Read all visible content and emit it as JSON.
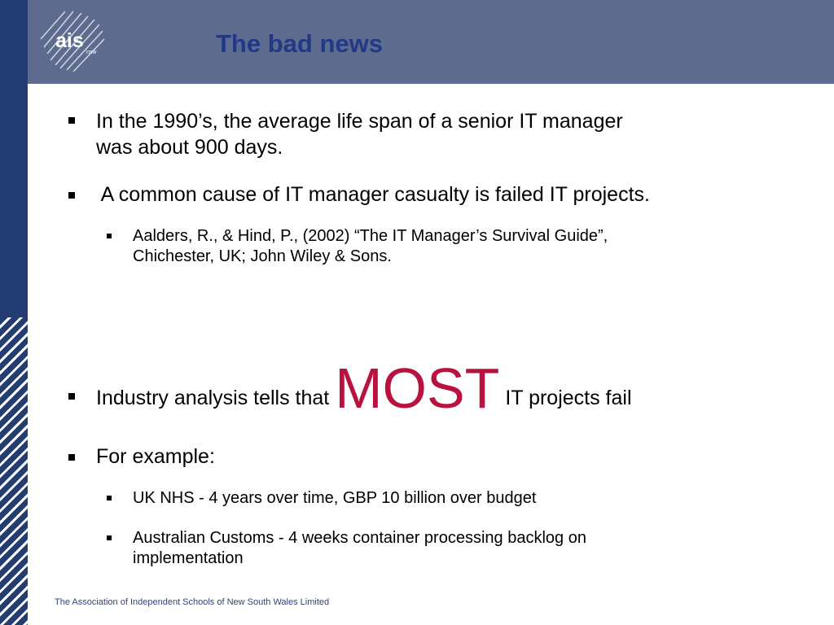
{
  "slide": {
    "title": "The bad news",
    "logo_text": "ais",
    "logo_subtext": "nsw",
    "bullets": [
      {
        "line1": "In the 1990’s, the average life span of a senior IT manager",
        "line2": "was about 900 days."
      },
      {
        "line1": " A common cause of IT manager casualty is failed IT projects."
      }
    ],
    "reference": {
      "line1": "Aalders, R., & Hind, P., (2002) “The IT Manager’s Survival Guide”,",
      "line2": "Chichester, UK; John Wiley & Sons."
    },
    "industry": {
      "prefix": "Industry analysis tells that ",
      "emphasis": "MOST",
      "suffix": " IT projects fail"
    },
    "example_label": "For example:",
    "examples": [
      {
        "line1": "UK NHS - 4 years over time, GBP 10 billion over budget"
      },
      {
        "line1": "Australian Customs - 4 weeks container processing backlog on",
        "line2": "implementation"
      }
    ],
    "footer": "The Association of Independent Schools of New South Wales Limited"
  },
  "colors": {
    "title": "#223a86",
    "header_band": "#5d6b8f",
    "side_bar": "#233c72",
    "emphasis": "#b9123e"
  }
}
